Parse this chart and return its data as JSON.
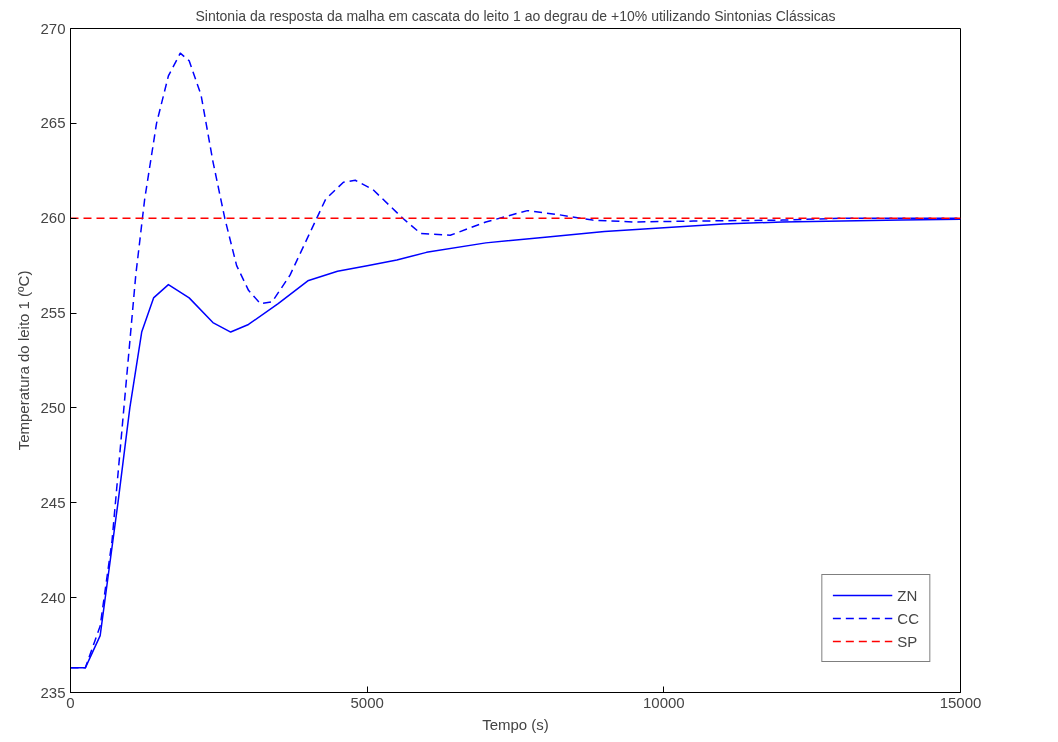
{
  "chart_data": {
    "type": "line",
    "title": "Sintonia da resposta da malha em cascata do leito 1 ao degrau de +10% utilizando Sintonias Clássicas",
    "xlabel": "Tempo (s)",
    "ylabel": "Temperatura do leito 1 (ºC)",
    "xlim": [
      0,
      15000
    ],
    "ylim": [
      235,
      270
    ],
    "xticks": [
      0,
      5000,
      10000,
      15000
    ],
    "yticks": [
      235,
      240,
      245,
      250,
      255,
      260,
      265,
      270
    ],
    "grid": false,
    "legend": "bottom right",
    "marker": "none",
    "series": [
      {
        "name": "ZN",
        "color": "#0000ff",
        "line_style": "solid",
        "x": [
          0,
          250,
          500,
          800,
          1000,
          1200,
          1400,
          1650,
          2000,
          2400,
          2700,
          3000,
          3500,
          4000,
          4500,
          5000,
          5500,
          6000,
          7000,
          8000,
          9000,
          10000,
          11000,
          12000,
          13000,
          14000,
          15000
        ],
        "values": [
          236.3,
          236.3,
          238,
          245,
          250,
          254,
          255.8,
          256.5,
          255.8,
          254.5,
          254.0,
          254.4,
          255.5,
          256.7,
          257.2,
          257.5,
          257.8,
          258.2,
          258.7,
          259.0,
          259.3,
          259.5,
          259.7,
          259.8,
          259.85,
          259.9,
          259.95
        ]
      },
      {
        "name": "CC",
        "color": "#0000ff",
        "line_style": "dashed",
        "x": [
          0,
          250,
          500,
          700,
          900,
          1100,
          1250,
          1450,
          1650,
          1850,
          2000,
          2200,
          2400,
          2600,
          2800,
          3000,
          3200,
          3400,
          3700,
          4000,
          4300,
          4600,
          4800,
          5100,
          5600,
          5900,
          6400,
          7000,
          7700,
          8200,
          8800,
          9500,
          10500,
          12000,
          13000,
          15000
        ],
        "values": [
          236.3,
          236.3,
          238.5,
          243,
          250,
          257,
          261,
          265,
          267.5,
          268.7,
          268.3,
          266.5,
          263,
          260,
          257.5,
          256.2,
          255.5,
          255.6,
          257,
          259,
          261,
          261.9,
          262.0,
          261.5,
          260,
          259.2,
          259.1,
          259.8,
          260.4,
          260.2,
          259.9,
          259.8,
          259.85,
          259.9,
          260,
          260
        ]
      },
      {
        "name": "SP",
        "color": "#ff0000",
        "line_style": "dashed",
        "x": [
          0,
          15000
        ],
        "values": [
          260,
          260
        ]
      }
    ]
  }
}
